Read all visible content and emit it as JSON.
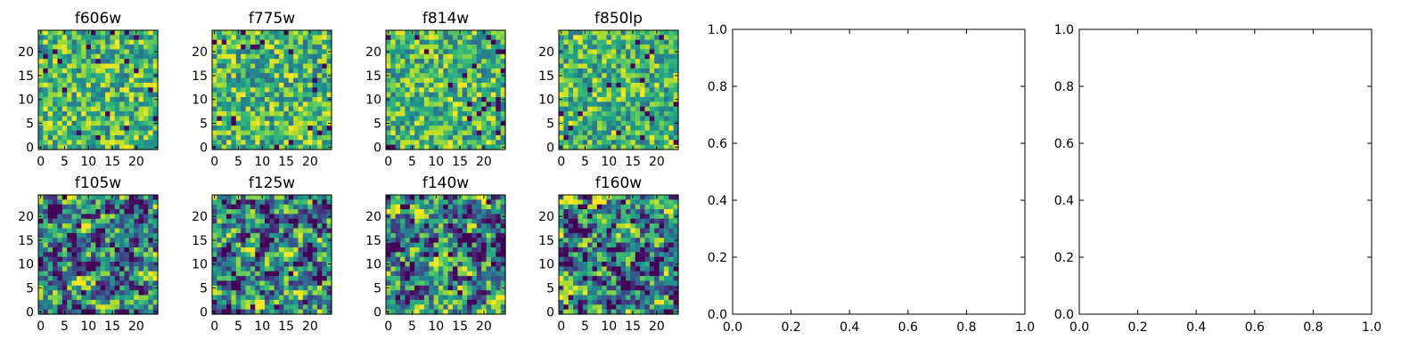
{
  "figure": {
    "background": "#ffffff"
  },
  "chart_data": [
    {
      "type": "heatmap",
      "title": "f606w",
      "rows": 25,
      "cols": 25,
      "x_ticks": [
        "0",
        "5",
        "10",
        "15",
        "20"
      ],
      "y_ticks": [
        "0",
        "5",
        "10",
        "15",
        "20"
      ],
      "xlim": [
        -0.5,
        24.5
      ],
      "ylim": [
        -0.5,
        24.5
      ],
      "colormap": "viridis",
      "values_note": ""
    },
    {
      "type": "heatmap",
      "title": "f775w",
      "rows": 25,
      "cols": 25,
      "x_ticks": [
        "0",
        "5",
        "10",
        "15",
        "20"
      ],
      "y_ticks": [
        "0",
        "5",
        "10",
        "15",
        "20"
      ],
      "xlim": [
        -0.5,
        24.5
      ],
      "ylim": [
        -0.5,
        24.5
      ],
      "colormap": "viridis",
      "values_note": ""
    },
    {
      "type": "heatmap",
      "title": "f814w",
      "rows": 25,
      "cols": 25,
      "x_ticks": [
        "0",
        "5",
        "10",
        "15",
        "20"
      ],
      "y_ticks": [
        "0",
        "5",
        "10",
        "15",
        "20"
      ],
      "xlim": [
        -0.5,
        24.5
      ],
      "ylim": [
        -0.5,
        24.5
      ],
      "colormap": "viridis",
      "values_note": ""
    },
    {
      "type": "heatmap",
      "title": "f850lp",
      "rows": 25,
      "cols": 25,
      "x_ticks": [
        "0",
        "5",
        "10",
        "15",
        "20"
      ],
      "y_ticks": [
        "0",
        "5",
        "10",
        "15",
        "20"
      ],
      "xlim": [
        -0.5,
        24.5
      ],
      "ylim": [
        -0.5,
        24.5
      ],
      "colormap": "viridis",
      "values_note": ""
    },
    {
      "type": "heatmap",
      "title": "f105w",
      "rows": 25,
      "cols": 25,
      "x_ticks": [
        "0",
        "5",
        "10",
        "15",
        "20"
      ],
      "y_ticks": [
        "0",
        "5",
        "10",
        "15",
        "20"
      ],
      "xlim": [
        -0.5,
        24.5
      ],
      "ylim": [
        -0.5,
        24.5
      ],
      "colormap": "viridis",
      "values_note": ""
    },
    {
      "type": "heatmap",
      "title": "f125w",
      "rows": 25,
      "cols": 25,
      "x_ticks": [
        "0",
        "5",
        "10",
        "15",
        "20"
      ],
      "y_ticks": [
        "0",
        "5",
        "10",
        "15",
        "20"
      ],
      "xlim": [
        -0.5,
        24.5
      ],
      "ylim": [
        -0.5,
        24.5
      ],
      "colormap": "viridis",
      "values_note": ""
    },
    {
      "type": "heatmap",
      "title": "f140w",
      "rows": 25,
      "cols": 25,
      "x_ticks": [
        "0",
        "5",
        "10",
        "15",
        "20"
      ],
      "y_ticks": [
        "0",
        "5",
        "10",
        "15",
        "20"
      ],
      "xlim": [
        -0.5,
        24.5
      ],
      "ylim": [
        -0.5,
        24.5
      ],
      "colormap": "viridis",
      "values_note": ""
    },
    {
      "type": "heatmap",
      "title": "f160w",
      "rows": 25,
      "cols": 25,
      "x_ticks": [
        "0",
        "5",
        "10",
        "15",
        "20"
      ],
      "y_ticks": [
        "0",
        "5",
        "10",
        "15",
        "20"
      ],
      "xlim": [
        -0.5,
        24.5
      ],
      "ylim": [
        -0.5,
        24.5
      ],
      "colormap": "viridis",
      "values_note": ""
    },
    {
      "type": "line",
      "title": "",
      "series": [],
      "xlim": [
        0.0,
        1.0
      ],
      "ylim": [
        0.0,
        1.0
      ],
      "x_ticks": [
        "0.0",
        "0.2",
        "0.4",
        "0.6",
        "0.8",
        "1.0"
      ],
      "y_ticks": [
        "0.0",
        "0.2",
        "0.4",
        "0.6",
        "0.8",
        "1.0"
      ]
    },
    {
      "type": "line",
      "title": "",
      "series": [],
      "xlim": [
        0.0,
        1.0
      ],
      "ylim": [
        0.0,
        1.0
      ],
      "x_ticks": [
        "0.0",
        "0.2",
        "0.4",
        "0.6",
        "0.8",
        "1.0"
      ],
      "y_ticks": [
        "0.0",
        "0.2",
        "0.4",
        "0.6",
        "0.8",
        "1.0"
      ]
    }
  ]
}
